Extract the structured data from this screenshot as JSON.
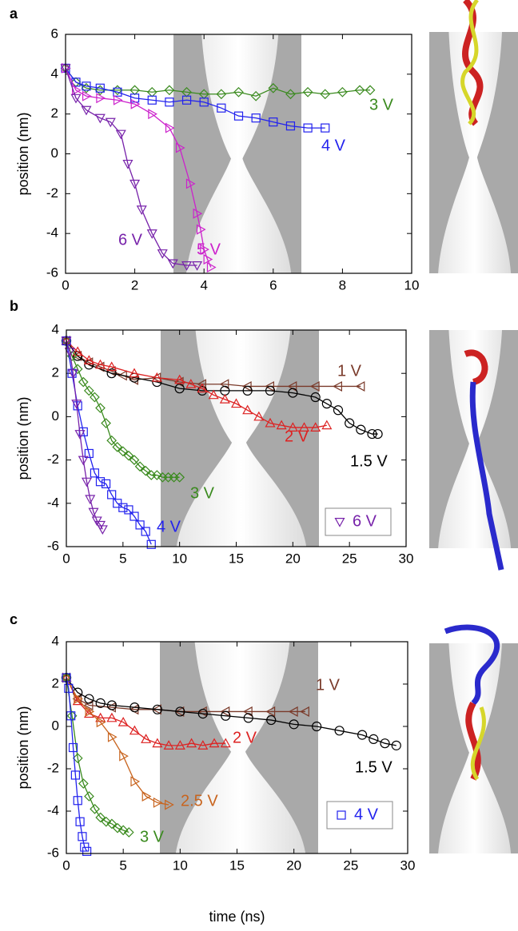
{
  "chart_data": [
    {
      "type": "line",
      "panel_label": "a",
      "ylabel": "position (nm)",
      "xlim": [
        0,
        10
      ],
      "ylim": [
        -6,
        6
      ],
      "xticks": [
        0,
        2,
        4,
        6,
        8,
        10
      ],
      "yticks": [
        -6,
        -4,
        -2,
        0,
        2,
        4,
        6
      ],
      "series": [
        {
          "name": "3 V",
          "color": "#3a8a1e",
          "marker": "diamond",
          "x": [
            0,
            0.3,
            0.6,
            1,
            1.5,
            2,
            2.5,
            3,
            3.5,
            4,
            4.5,
            5,
            5.5,
            6,
            6.5,
            7,
            7.5,
            8,
            8.5,
            8.8
          ],
          "values": [
            4.3,
            3.6,
            3.3,
            3.2,
            3.2,
            3.2,
            3.1,
            3.2,
            3.1,
            3.0,
            3.0,
            3.1,
            2.9,
            3.3,
            3.0,
            3.1,
            3.0,
            3.1,
            3.2,
            3.2
          ]
        },
        {
          "name": "4 V",
          "color": "#2222ee",
          "marker": "square",
          "x": [
            0,
            0.3,
            0.6,
            1,
            1.5,
            2,
            2.5,
            3,
            3.5,
            4,
            4.5,
            5,
            5.5,
            6,
            6.5,
            7,
            7.5
          ],
          "values": [
            4.3,
            3.6,
            3.4,
            3.3,
            3.1,
            2.8,
            2.7,
            2.6,
            2.7,
            2.6,
            2.3,
            1.9,
            1.8,
            1.6,
            1.4,
            1.3,
            1.3
          ]
        },
        {
          "name": "5 V",
          "color": "#cc22cc",
          "marker": "triangle-right",
          "x": [
            0,
            0.3,
            0.6,
            1,
            1.5,
            2,
            2.5,
            3,
            3.3,
            3.6,
            3.8,
            3.9,
            4,
            4.1,
            4.2
          ],
          "values": [
            4.3,
            3.2,
            2.9,
            2.8,
            2.7,
            2.5,
            2.0,
            1.3,
            0.3,
            -1.5,
            -3,
            -3.8,
            -4.8,
            -5.3,
            -5.7
          ]
        },
        {
          "name": "6 V",
          "color": "#7722aa",
          "marker": "triangle-down",
          "x": [
            0,
            0.3,
            0.6,
            1,
            1.3,
            1.6,
            1.8,
            2,
            2.2,
            2.5,
            2.8,
            3.1,
            3.5,
            3.8
          ],
          "values": [
            4.3,
            2.8,
            2.2,
            1.8,
            1.6,
            1.0,
            -0.5,
            -1.5,
            -2.8,
            -4,
            -5,
            -5.5,
            -5.6,
            -5.6
          ]
        }
      ]
    },
    {
      "type": "line",
      "panel_label": "b",
      "ylabel": "position (nm)",
      "xlim": [
        0,
        30
      ],
      "ylim": [
        -6,
        4
      ],
      "xticks": [
        0,
        5,
        10,
        15,
        20,
        25,
        30
      ],
      "yticks": [
        -6,
        -4,
        -2,
        0,
        2,
        4
      ],
      "series": [
        {
          "name": "1 V",
          "color": "#7a3a2a",
          "marker": "triangle-left",
          "x": [
            0,
            1,
            2,
            3,
            4,
            5,
            6,
            8,
            10,
            12,
            14,
            16,
            18,
            20,
            22,
            24,
            26
          ],
          "values": [
            3.5,
            2.8,
            2.5,
            2.3,
            2.1,
            1.9,
            1.7,
            1.8,
            1.6,
            1.5,
            1.5,
            1.4,
            1.4,
            1.4,
            1.4,
            1.4,
            1.4
          ]
        },
        {
          "name": "1.5 V",
          "color": "#000000",
          "marker": "circle",
          "x": [
            0,
            1,
            2,
            4,
            6,
            8,
            10,
            12,
            14,
            16,
            18,
            20,
            22,
            23,
            24,
            25,
            26,
            27,
            27.5
          ],
          "values": [
            3.5,
            2.8,
            2.4,
            2.0,
            1.8,
            1.6,
            1.3,
            1.2,
            1.2,
            1.2,
            1.2,
            1.1,
            0.9,
            0.6,
            0.3,
            -0.3,
            -0.6,
            -0.8,
            -0.8
          ]
        },
        {
          "name": "2 V",
          "color": "#dd2222",
          "marker": "triangle-up",
          "x": [
            0,
            1,
            2,
            3,
            4,
            6,
            8,
            10,
            11,
            12,
            13,
            14,
            15,
            16,
            17,
            18,
            19,
            20,
            21,
            22,
            23
          ],
          "values": [
            3.5,
            3.0,
            2.6,
            2.4,
            2.3,
            2.0,
            1.8,
            1.7,
            1.5,
            1.3,
            1.0,
            0.8,
            0.6,
            0.3,
            0.0,
            -0.3,
            -0.4,
            -0.5,
            -0.5,
            -0.5,
            -0.4
          ]
        },
        {
          "name": "3 V",
          "color": "#3a8a1e",
          "marker": "diamond",
          "x": [
            0,
            0.5,
            1,
            1.5,
            2,
            2.5,
            3,
            3.5,
            4,
            4.5,
            5,
            5.5,
            6,
            6.5,
            7,
            7.5,
            8,
            8.5,
            9,
            9.5,
            10
          ],
          "values": [
            3.5,
            2.8,
            2.2,
            1.6,
            1.2,
            0.9,
            0.4,
            -0.3,
            -1.1,
            -1.4,
            -1.6,
            -1.8,
            -2.0,
            -2.3,
            -2.5,
            -2.7,
            -2.7,
            -2.8,
            -2.8,
            -2.8,
            -2.8
          ]
        },
        {
          "name": "4 V",
          "color": "#2222ee",
          "marker": "square",
          "x": [
            0,
            0.5,
            1,
            1.5,
            2,
            2.5,
            3,
            3.5,
            4,
            4.5,
            5,
            5.5,
            6,
            6.5,
            7,
            7.5
          ],
          "values": [
            3.5,
            2.0,
            0.5,
            -0.7,
            -1.7,
            -2.6,
            -3.0,
            -3.1,
            -3.6,
            -4.0,
            -4.2,
            -4.3,
            -4.6,
            -5.0,
            -5.3,
            -5.9
          ]
        },
        {
          "name": "6 V",
          "color": "#7722aa",
          "marker": "triangle-down",
          "x": [
            0,
            0.3,
            0.6,
            0.9,
            1.2,
            1.5,
            1.8,
            2.1,
            2.4,
            2.7,
            3.0,
            3.2
          ],
          "values": [
            3.5,
            3.0,
            2.0,
            0.6,
            -0.8,
            -2.0,
            -3.0,
            -3.8,
            -4.4,
            -4.8,
            -5.0,
            -5.2
          ]
        }
      ]
    },
    {
      "type": "line",
      "panel_label": "c",
      "ylabel": "position (nm)",
      "xlabel": "time (ns)",
      "xlim": [
        0,
        30
      ],
      "ylim": [
        -6,
        4
      ],
      "xticks": [
        0,
        5,
        10,
        15,
        20,
        25,
        30
      ],
      "yticks": [
        -6,
        -4,
        -2,
        0,
        2,
        4
      ],
      "series": [
        {
          "name": "1 V",
          "color": "#7a3a2a",
          "marker": "triangle-left",
          "x": [
            0,
            1,
            2,
            4,
            6,
            8,
            10,
            12,
            14,
            16,
            18,
            20,
            21
          ],
          "values": [
            2.3,
            1.3,
            1.0,
            0.9,
            0.8,
            0.8,
            0.7,
            0.7,
            0.7,
            0.7,
            0.7,
            0.7,
            0.7
          ]
        },
        {
          "name": "1.5 V",
          "color": "#000000",
          "marker": "circle",
          "x": [
            0,
            1,
            2,
            3,
            4,
            6,
            8,
            10,
            12,
            14,
            16,
            18,
            20,
            22,
            24,
            26,
            27,
            28,
            29
          ],
          "values": [
            2.3,
            1.6,
            1.3,
            1.1,
            1.0,
            0.9,
            0.8,
            0.7,
            0.6,
            0.5,
            0.4,
            0.3,
            0.1,
            0.0,
            -0.2,
            -0.4,
            -0.6,
            -0.8,
            -0.9
          ]
        },
        {
          "name": "2 V",
          "color": "#dd2222",
          "marker": "triangle-up",
          "x": [
            0,
            1,
            2,
            3,
            4,
            5,
            6,
            7,
            8,
            9,
            10,
            11,
            12,
            13,
            14
          ],
          "values": [
            2.3,
            1.2,
            0.6,
            0.4,
            0.4,
            0.2,
            -0.2,
            -0.6,
            -0.8,
            -0.9,
            -0.9,
            -0.8,
            -0.9,
            -0.8,
            -0.8
          ]
        },
        {
          "name": "2.5 V",
          "color": "#c8641e",
          "marker": "triangle-right",
          "x": [
            0,
            1,
            2,
            3,
            4,
            5,
            6,
            7,
            8,
            9
          ],
          "values": [
            2.3,
            1.3,
            0.7,
            0.2,
            -0.5,
            -1.4,
            -2.6,
            -3.3,
            -3.6,
            -3.7
          ]
        },
        {
          "name": "3 V",
          "color": "#3a8a1e",
          "marker": "diamond",
          "x": [
            0,
            0.5,
            1,
            1.5,
            2,
            2.5,
            3,
            3.5,
            4,
            4.5,
            5,
            5.5
          ],
          "values": [
            2.3,
            0.5,
            -1.5,
            -2.7,
            -3.3,
            -3.9,
            -4.3,
            -4.5,
            -4.6,
            -4.8,
            -4.9,
            -5.0
          ]
        },
        {
          "name": "4 V",
          "color": "#2222ee",
          "marker": "square",
          "x": [
            0,
            0.2,
            0.4,
            0.6,
            0.8,
            1.0,
            1.2,
            1.4,
            1.6,
            1.8
          ],
          "values": [
            2.3,
            1.8,
            0.5,
            -1.0,
            -2.3,
            -3.5,
            -4.5,
            -5.2,
            -5.7,
            -5.9
          ]
        }
      ]
    }
  ]
}
